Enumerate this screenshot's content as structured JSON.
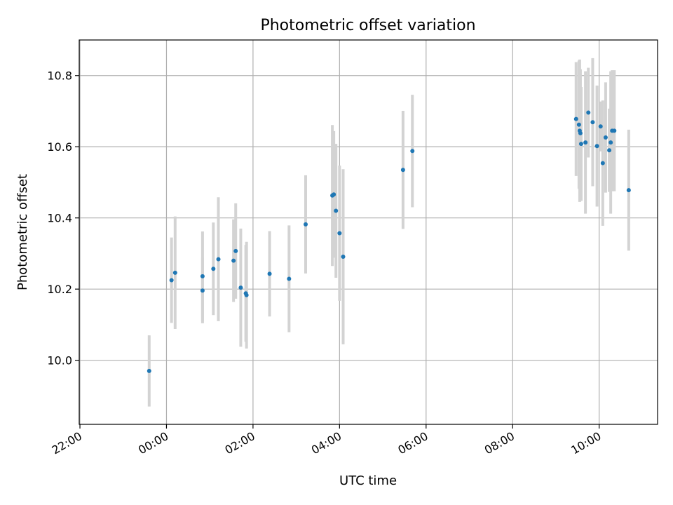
{
  "chart_data": {
    "type": "scatter",
    "title": "Photometric offset variation",
    "xlabel": "UTC time",
    "ylabel": "Photometric offset",
    "x_axis_type": "time",
    "xlim": [
      "21:59",
      "11:21"
    ],
    "ylim": [
      9.82,
      10.9
    ],
    "x_ticks": [
      "22:00",
      "00:00",
      "02:00",
      "04:00",
      "06:00",
      "08:00",
      "10:00"
    ],
    "y_ticks": [
      10.0,
      10.2,
      10.4,
      10.6,
      10.8
    ],
    "grid": true,
    "marker_color": "#1f77b4",
    "errorbar_color": "#d3d3d3",
    "points": [
      {
        "x": "23:36",
        "y": 9.97,
        "err": 0.1
      },
      {
        "x": "00:07",
        "y": 10.225,
        "err": 0.12
      },
      {
        "x": "00:12",
        "y": 10.246,
        "err": 0.158
      },
      {
        "x": "00:50",
        "y": 10.236,
        "err": 0.126
      },
      {
        "x": "00:50",
        "y": 10.196,
        "err": 0.092
      },
      {
        "x": "01:05",
        "y": 10.257,
        "err": 0.13
      },
      {
        "x": "01:12",
        "y": 10.284,
        "err": 0.174
      },
      {
        "x": "01:33",
        "y": 10.28,
        "err": 0.116
      },
      {
        "x": "01:36",
        "y": 10.307,
        "err": 0.134
      },
      {
        "x": "01:43",
        "y": 10.204,
        "err": 0.166
      },
      {
        "x": "01:50",
        "y": 10.188,
        "err": 0.136
      },
      {
        "x": "01:51",
        "y": 10.183,
        "err": 0.15
      },
      {
        "x": "02:23",
        "y": 10.243,
        "err": 0.12
      },
      {
        "x": "02:50",
        "y": 10.229,
        "err": 0.15
      },
      {
        "x": "03:13",
        "y": 10.382,
        "err": 0.138
      },
      {
        "x": "03:50",
        "y": 10.463,
        "err": 0.198
      },
      {
        "x": "03:52",
        "y": 10.466,
        "err": 0.178
      },
      {
        "x": "03:55",
        "y": 10.42,
        "err": 0.188
      },
      {
        "x": "04:00",
        "y": 10.357,
        "err": 0.19
      },
      {
        "x": "04:05",
        "y": 10.291,
        "err": 0.246
      },
      {
        "x": "05:28",
        "y": 10.535,
        "err": 0.166
      },
      {
        "x": "05:41",
        "y": 10.588,
        "err": 0.158
      },
      {
        "x": "09:28",
        "y": 10.678,
        "err": 0.16
      },
      {
        "x": "09:32",
        "y": 10.662,
        "err": 0.18
      },
      {
        "x": "09:33",
        "y": 10.645,
        "err": 0.2
      },
      {
        "x": "09:34",
        "y": 10.638,
        "err": 0.18
      },
      {
        "x": "09:35",
        "y": 10.608,
        "err": 0.16
      },
      {
        "x": "09:41",
        "y": 10.612,
        "err": 0.2
      },
      {
        "x": "09:45",
        "y": 10.696,
        "err": 0.126
      },
      {
        "x": "09:51",
        "y": 10.669,
        "err": 0.18
      },
      {
        "x": "09:57",
        "y": 10.602,
        "err": 0.17
      },
      {
        "x": "10:02",
        "y": 10.657,
        "err": 0.07
      },
      {
        "x": "10:05",
        "y": 10.554,
        "err": 0.176
      },
      {
        "x": "10:09",
        "y": 10.626,
        "err": 0.155
      },
      {
        "x": "10:14",
        "y": 10.59,
        "err": 0.117
      },
      {
        "x": "10:16",
        "y": 10.612,
        "err": 0.2
      },
      {
        "x": "10:18",
        "y": 10.645,
        "err": 0.17
      },
      {
        "x": "10:21",
        "y": 10.645,
        "err": 0.17
      },
      {
        "x": "10:41",
        "y": 10.478,
        "err": 0.17
      }
    ]
  }
}
